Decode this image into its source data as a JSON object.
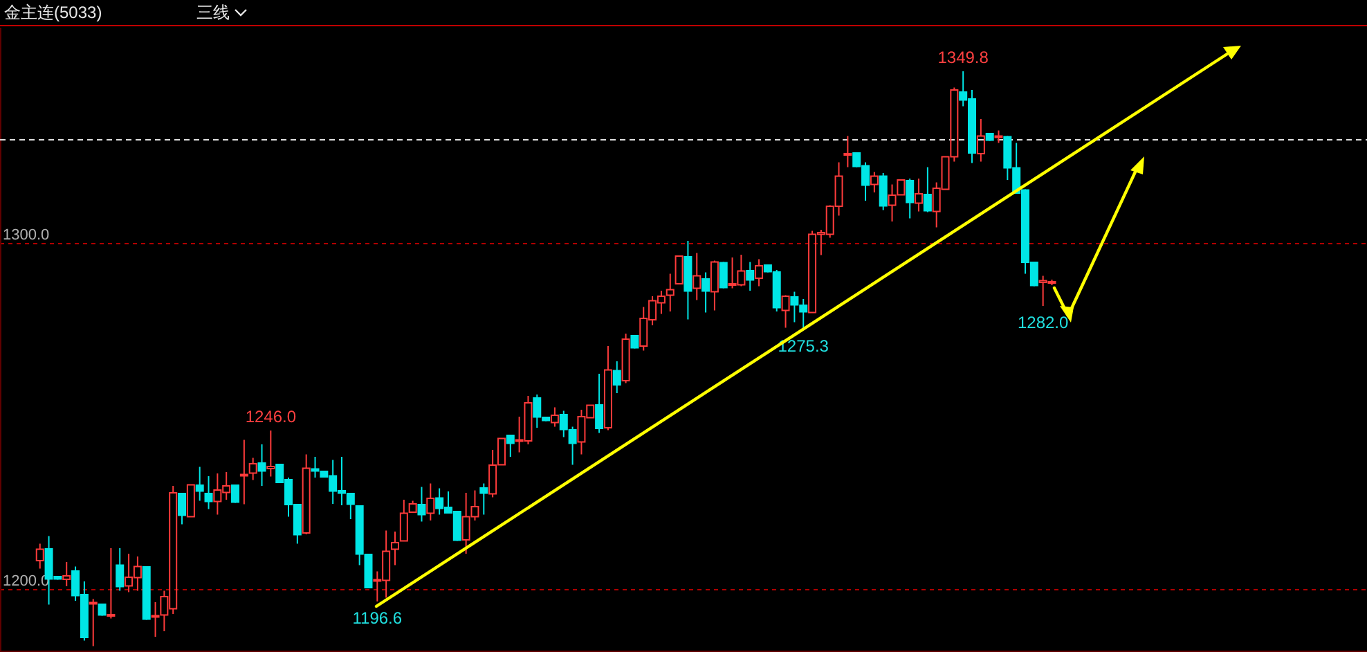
{
  "chart_data": {
    "type": "candlestick",
    "title": "金主连(5033)",
    "subtitle": "三线",
    "categories": [
      null,
      null,
      null,
      null,
      null,
      null,
      null,
      null,
      null,
      null,
      null,
      null,
      null,
      null,
      null,
      null,
      null,
      null,
      null,
      null,
      null,
      null,
      null,
      null,
      null,
      null,
      null,
      null,
      null,
      null,
      null,
      null,
      null,
      null,
      null,
      null,
      null,
      null,
      null,
      null,
      null,
      null,
      null,
      null,
      null,
      null,
      null,
      null,
      null,
      null,
      null,
      null,
      null,
      null,
      null,
      null,
      null,
      null,
      null,
      null,
      null,
      null,
      null,
      null,
      null,
      null,
      null,
      null,
      null,
      null,
      null,
      null,
      null,
      null,
      null,
      null,
      null,
      null,
      null,
      null,
      null,
      null,
      null,
      null,
      null,
      null,
      null,
      null,
      null,
      null,
      null,
      null,
      null,
      null,
      null,
      null,
      null,
      null,
      null,
      null,
      null,
      null,
      null,
      null,
      null,
      null,
      null,
      null,
      null,
      null,
      null,
      null,
      null,
      null,
      null,
      null,
      null,
      null,
      null,
      null,
      null,
      null,
      null,
      null,
      null,
      null,
      null,
      null,
      null,
      null,
      null,
      null,
      null,
      null,
      null,
      null,
      null,
      null,
      null,
      null,
      null,
      null,
      null,
      null,
      null,
      null,
      null,
      null,
      null,
      null,
      null,
      null,
      null,
      null
    ],
    "ohlc": [
      null,
      null,
      null,
      null,
      [
        1208.4,
        1213.3,
        1206.1,
        1211.7
      ],
      [
        1212.0,
        1215.5,
        1195.7,
        1202.9
      ],
      [
        1204.0,
        1204.0,
        1202.9,
        1202.9
      ],
      [
        1203.0,
        1208.0,
        1201.0,
        1204.0
      ],
      [
        1205.6,
        1206.7,
        1196.8,
        1198.1
      ],
      [
        1198.8,
        1202.4,
        1185.3,
        1186.0
      ],
      [
        1196.0,
        1197.3,
        1183.7,
        1196.3
      ],
      [
        1196.0,
        1196.0,
        1192.5,
        1192.5
      ],
      [
        1192.4,
        1212.0,
        1191.7,
        1192.8
      ],
      [
        1207.3,
        1212.0,
        1199.7,
        1200.7
      ],
      [
        1201.1,
        1210.4,
        1199.3,
        1203.6
      ],
      [
        1203.5,
        1209.6,
        1199.7,
        1206.7
      ],
      [
        1206.8,
        1206.8,
        1191.3,
        1191.3
      ],
      [
        1192.2,
        1196.4,
        1186.4,
        1192.5
      ],
      [
        1192.7,
        1199.7,
        1188.0,
        1198.0
      ],
      [
        1194.5,
        1230.0,
        1193.0,
        1228.0
      ],
      [
        1228.0,
        1228.0,
        1218.9,
        1221.3
      ],
      [
        1221.1,
        1230.3,
        1221.1,
        1230.3
      ],
      [
        1230.4,
        1235.5,
        1225.7,
        1228.3
      ],
      [
        1228.0,
        1232.8,
        1223.3,
        1225.3
      ],
      [
        1225.5,
        1233.6,
        1221.7,
        1228.8
      ],
      [
        1228.1,
        1234.0,
        1226.0,
        1230.0
      ],
      [
        1230.4,
        1230.4,
        1225.1,
        1225.1
      ],
      [
        1233.0,
        1243.3,
        1224.7,
        1233.3
      ],
      [
        1233.7,
        1238.1,
        1231.7,
        1236.4
      ],
      [
        1236.8,
        1242.0,
        1230.0,
        1234.1
      ],
      [
        1235.0,
        1246.0,
        1232.7,
        1235.6
      ],
      [
        1236.4,
        1236.4,
        1230.8,
        1230.8
      ],
      [
        1232.0,
        1232.4,
        1221.1,
        1224.4
      ],
      [
        1224.8,
        1224.8,
        1213.3,
        1215.7
      ],
      [
        1216.4,
        1239.1,
        1216.0,
        1235.1
      ],
      [
        1235.1,
        1238.4,
        1232.4,
        1234.1
      ],
      [
        1234.4,
        1234.4,
        1232.4,
        1232.4
      ],
      [
        1233.1,
        1237.5,
        1224.8,
        1228.3
      ],
      [
        1228.8,
        1238.4,
        1224.4,
        1227.7
      ],
      [
        1228.0,
        1228.0,
        1220.4,
        1224.5
      ],
      [
        1224.4,
        1224.4,
        1207.1,
        1210.1
      ],
      [
        1210.4,
        1210.4,
        1200.4,
        1200.4
      ],
      [
        1202.7,
        1205.3,
        1196.6,
        1202.9
      ],
      [
        1202.7,
        1217.1,
        1197.7,
        1211.1
      ],
      [
        1211.7,
        1216.8,
        1207.1,
        1213.6
      ],
      [
        1214.1,
        1226.0,
        1214.1,
        1222.1
      ],
      [
        1222.4,
        1225.7,
        1222.4,
        1224.8
      ],
      [
        1224.8,
        1229.7,
        1219.7,
        1221.5
      ],
      [
        1222.1,
        1230.7,
        1220.0,
        1226.4
      ],
      [
        1226.7,
        1229.3,
        1221.7,
        1223.3
      ],
      [
        1224.0,
        1228.4,
        1222.0,
        1222.0
      ],
      [
        1222.8,
        1222.8,
        1214.1,
        1214.1
      ],
      [
        1214.4,
        1228.0,
        1210.4,
        1221.1
      ],
      [
        1221.1,
        1228.7,
        1220.0,
        1224.0
      ],
      [
        1229.6,
        1230.7,
        1221.7,
        1227.7
      ],
      [
        1227.7,
        1240.4,
        1226.7,
        1236.0
      ],
      [
        1236.1,
        1243.7,
        1236.1,
        1243.7
      ],
      [
        1244.8,
        1244.8,
        1238.4,
        1242.1
      ],
      [
        1243.0,
        1250.0,
        1239.7,
        1243.3
      ],
      [
        1243.0,
        1256.0,
        1242.0,
        1254.0
      ],
      [
        1255.6,
        1256.4,
        1246.8,
        1249.7
      ],
      [
        1250.0,
        1250.0,
        1248.7,
        1248.7
      ],
      [
        1248.3,
        1252.7,
        1247.1,
        1250.4
      ],
      [
        1250.8,
        1251.7,
        1244.1,
        1246.1
      ],
      [
        1246.4,
        1247.1,
        1236.1,
        1242.1
      ],
      [
        1242.7,
        1252.0,
        1239.1,
        1250.0
      ],
      [
        1249.7,
        1253.3,
        1249.7,
        1253.3
      ],
      [
        1253.6,
        1262.4,
        1245.3,
        1246.4
      ],
      [
        1246.8,
        1270.4,
        1246.1,
        1263.5
      ],
      [
        1263.5,
        1266.0,
        1256.8,
        1259.0
      ],
      [
        1260.4,
        1274.0,
        1259.7,
        1272.4
      ],
      [
        1273.6,
        1273.6,
        1269.7,
        1269.7
      ],
      [
        1270.4,
        1281.7,
        1269.1,
        1278.4
      ],
      [
        1278.0,
        1284.8,
        1276.4,
        1283.5
      ],
      [
        1282.9,
        1286.4,
        1279.7,
        1284.8
      ],
      [
        1285.1,
        1291.3,
        1280.4,
        1286.7
      ],
      [
        1288.4,
        1296.4,
        1288.4,
        1296.4
      ],
      [
        1296.4,
        1300.8,
        1278.1,
        1286.1
      ],
      [
        1287.1,
        1297.3,
        1283.7,
        1290.7
      ],
      [
        1290.0,
        1291.7,
        1280.1,
        1286.1
      ],
      [
        1286.1,
        1295.1,
        1280.7,
        1294.7
      ],
      [
        1294.7,
        1294.7,
        1287.1,
        1287.1
      ],
      [
        1288.0,
        1296.0,
        1287.1,
        1288.4
      ],
      [
        1288.1,
        1296.8,
        1287.7,
        1292.1
      ],
      [
        1292.4,
        1294.7,
        1286.4,
        1289.3
      ],
      [
        1290.0,
        1295.5,
        1287.7,
        1293.6
      ],
      [
        1294.0,
        1294.0,
        1291.7,
        1291.7
      ],
      [
        1292.0,
        1292.4,
        1280.4,
        1281.3
      ],
      [
        1280.7,
        1285.1,
        1275.7,
        1284.8
      ],
      [
        1284.8,
        1286.1,
        1277.3,
        1282.1
      ],
      [
        1282.4,
        1284.0,
        1275.3,
        1280.1
      ],
      [
        1280.1,
        1303.7,
        1280.1,
        1302.7
      ],
      [
        1302.7,
        1304.0,
        1296.7,
        1303.2
      ],
      [
        1302.7,
        1311.1,
        1301.7,
        1310.8
      ],
      [
        1310.8,
        1323.5,
        1308.1,
        1319.5
      ],
      [
        1325.8,
        1331.1,
        1322.1,
        1326.0
      ],
      [
        1326.4,
        1326.4,
        1322.1,
        1322.1
      ],
      [
        1322.7,
        1323.5,
        1312.4,
        1316.7
      ],
      [
        1317.1,
        1320.7,
        1314.8,
        1319.5
      ],
      [
        1319.7,
        1320.4,
        1309.7,
        1310.7
      ],
      [
        1311.1,
        1317.1,
        1306.4,
        1314.0
      ],
      [
        1314.1,
        1318.4,
        1314.1,
        1318.4
      ],
      [
        1318.4,
        1318.8,
        1307.3,
        1311.7
      ],
      [
        1311.7,
        1318.8,
        1309.3,
        1314.4
      ],
      [
        1314.4,
        1322.1,
        1309.1,
        1309.3
      ],
      [
        1309.3,
        1317.7,
        1304.7,
        1316.0
      ],
      [
        1315.7,
        1325.1,
        1315.7,
        1325.1
      ],
      [
        1325.1,
        1345.1,
        1323.7,
        1344.4
      ],
      [
        1344.0,
        1349.8,
        1339.7,
        1341.3
      ],
      [
        1342.0,
        1344.4,
        1323.3,
        1326.0
      ],
      [
        1326.0,
        1336.0,
        1323.7,
        1331.1
      ],
      [
        1332.0,
        1332.0,
        1329.7,
        1329.7
      ],
      [
        1330.7,
        1332.7,
        1329.1,
        1331.1
      ],
      [
        1331.1,
        1331.1,
        1318.4,
        1321.7
      ],
      [
        1322.1,
        1329.1,
        1314.4,
        1314.4
      ],
      [
        1315.7,
        1315.7,
        1291.3,
        1294.4
      ],
      [
        1294.8,
        1294.8,
        1287.7,
        1287.7
      ],
      [
        1288.8,
        1290.7,
        1282.0,
        1289.3
      ],
      [
        1288.8,
        1289.6,
        1288.0,
        1289.0
      ],
      null,
      null,
      null,
      null,
      null,
      null,
      null,
      null,
      null,
      null,
      null,
      null,
      null,
      null,
      null,
      null,
      null,
      null,
      null,
      null,
      null,
      null,
      null,
      null,
      null,
      null,
      null,
      null,
      null,
      null,
      null,
      null,
      null,
      null,
      null
    ],
    "ylim": [
      1182,
      1362.4
    ],
    "yticks": [
      {
        "value": 1200,
        "label": "1200.0"
      },
      {
        "value": 1300,
        "label": "1300.0"
      }
    ],
    "grid": "y",
    "tick_labels": "y",
    "ref_lines": [
      {
        "axis": "y",
        "value": 1330,
        "color": "#e0e0e0",
        "line_style": "dashed"
      }
    ],
    "annotations": [
      {
        "text": "1246.0",
        "y": 1246.0
      },
      {
        "text": "1196.6",
        "y": 1196.6
      },
      {
        "text": "1275.3",
        "y": 1275.3
      },
      {
        "text": "1349.8",
        "y": 1349.8
      },
      {
        "text": "1282.0",
        "y": 1282.0
      }
    ]
  }
}
